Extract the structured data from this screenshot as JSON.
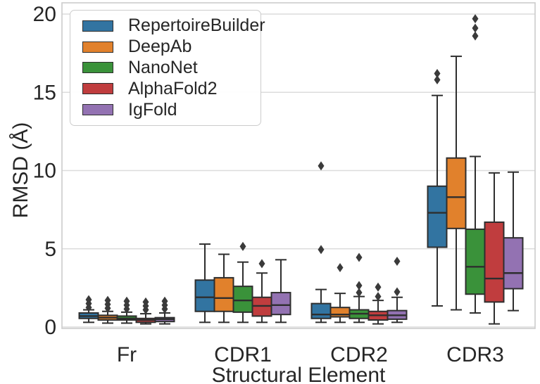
{
  "figure": {
    "background": "#ffffff",
    "text_color": "#262626",
    "grid_color": "#dcdcdc",
    "spine_color": "#cccccc",
    "box_edge_color": "#2e2e2e",
    "flier_color": "#3a3a3a"
  },
  "chart_data": {
    "type": "box",
    "title": "",
    "xlabel": "Structural Element",
    "ylabel": "RMSD (Å)",
    "ylim": [
      0,
      20.8
    ],
    "yticks": [
      0,
      5,
      10,
      15,
      20
    ],
    "grid": "horizontal",
    "legend_position": "upper left",
    "categories": [
      "Fr",
      "CDR1",
      "CDR2",
      "CDR3"
    ],
    "series": [
      {
        "name": "RepertoireBuilder",
        "color": "#3274A1",
        "boxes": [
          {
            "whislo": 0.3,
            "q1": 0.55,
            "med": 0.7,
            "q3": 0.9,
            "whishi": 1.1,
            "fliers": [
              1.25,
              1.5,
              1.75
            ]
          },
          {
            "whislo": 0.3,
            "q1": 1.0,
            "med": 1.9,
            "q3": 3.0,
            "whishi": 5.3,
            "fliers": []
          },
          {
            "whislo": 0.3,
            "q1": 0.55,
            "med": 0.8,
            "q3": 1.5,
            "whishi": 2.4,
            "fliers": [
              4.95,
              10.3
            ]
          },
          {
            "whislo": 1.35,
            "q1": 5.1,
            "med": 7.3,
            "q3": 9.0,
            "whishi": 14.8,
            "fliers": [
              15.8,
              16.2
            ]
          }
        ]
      },
      {
        "name": "DeepAb",
        "color": "#E1812C",
        "boxes": [
          {
            "whislo": 0.25,
            "q1": 0.45,
            "med": 0.6,
            "q3": 0.75,
            "whishi": 1.0,
            "fliers": [
              1.2,
              1.45,
              1.7
            ]
          },
          {
            "whislo": 0.3,
            "q1": 1.0,
            "med": 1.85,
            "q3": 3.15,
            "whishi": 4.65,
            "fliers": []
          },
          {
            "whislo": 0.3,
            "q1": 0.65,
            "med": 0.8,
            "q3": 1.25,
            "whishi": 2.15,
            "fliers": [
              3.8
            ]
          },
          {
            "whislo": 1.1,
            "q1": 6.3,
            "med": 8.3,
            "q3": 10.8,
            "whishi": 17.3,
            "fliers": []
          }
        ]
      },
      {
        "name": "NanoNet",
        "color": "#3A923A",
        "boxes": [
          {
            "whislo": 0.25,
            "q1": 0.45,
            "med": 0.55,
            "q3": 0.7,
            "whishi": 0.95,
            "fliers": [
              1.15,
              1.4,
              1.65
            ]
          },
          {
            "whislo": 0.3,
            "q1": 0.95,
            "med": 1.7,
            "q3": 2.6,
            "whishi": 4.15,
            "fliers": [
              5.15
            ]
          },
          {
            "whislo": 0.3,
            "q1": 0.55,
            "med": 0.85,
            "q3": 1.1,
            "whishi": 1.95,
            "fliers": [
              2.2,
              2.65,
              4.45
            ]
          },
          {
            "whislo": 0.9,
            "q1": 2.1,
            "med": 3.85,
            "q3": 6.25,
            "whishi": 10.9,
            "fliers": [
              18.6,
              19.1,
              19.7
            ]
          }
        ]
      },
      {
        "name": "AlphaFold2",
        "color": "#C03D3E",
        "boxes": [
          {
            "whislo": 0.2,
            "q1": 0.3,
            "med": 0.45,
            "q3": 0.55,
            "whishi": 0.85,
            "fliers": [
              1.1,
              1.35,
              1.6
            ]
          },
          {
            "whislo": 0.3,
            "q1": 0.7,
            "med": 1.35,
            "q3": 1.9,
            "whishi": 3.45,
            "fliers": [
              4.05
            ]
          },
          {
            "whislo": 0.2,
            "q1": 0.45,
            "med": 0.75,
            "q3": 1.0,
            "whishi": 1.7,
            "fliers": [
              1.95,
              2.55
            ]
          },
          {
            "whislo": 0.2,
            "q1": 1.6,
            "med": 3.1,
            "q3": 6.7,
            "whishi": 9.85,
            "fliers": []
          }
        ]
      },
      {
        "name": "IgFold",
        "color": "#9372B2",
        "boxes": [
          {
            "whislo": 0.2,
            "q1": 0.35,
            "med": 0.5,
            "q3": 0.6,
            "whishi": 0.9,
            "fliers": [
              1.15,
              1.4,
              1.65
            ]
          },
          {
            "whislo": 0.3,
            "q1": 0.8,
            "med": 1.4,
            "q3": 2.2,
            "whishi": 4.3,
            "fliers": []
          },
          {
            "whislo": 0.3,
            "q1": 0.5,
            "med": 0.75,
            "q3": 1.05,
            "whishi": 1.9,
            "fliers": [
              2.25,
              4.2
            ]
          },
          {
            "whislo": 1.05,
            "q1": 2.45,
            "med": 3.45,
            "q3": 5.7,
            "whishi": 9.9,
            "fliers": []
          }
        ]
      }
    ]
  }
}
